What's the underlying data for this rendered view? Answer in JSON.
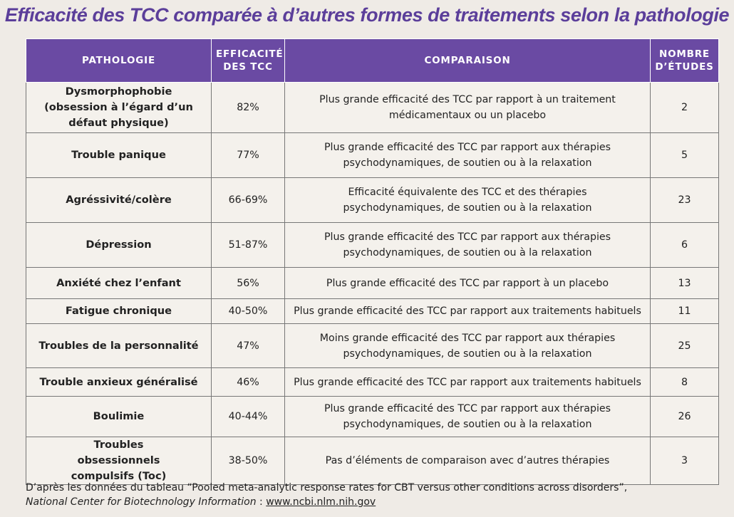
{
  "title": "Efficacité des TCC comparée à d’autres formes de traitements selon la pathologie",
  "headers": {
    "pathologie": "PATHOLOGIE",
    "efficacite_l1": "EFFICACITÉ",
    "efficacite_l2": "DES TCC",
    "comparaison": "COMPARAISON",
    "nombre_l1": "NOMBRE",
    "nombre_l2": "D’ÉTUDES"
  },
  "rows": [
    {
      "pathologie": "Dysmorphophobie (obsession à l’égard d’un défaut physique)",
      "efficacite": "82%",
      "comparaison": "Plus grande efficacité des TCC par rapport à un traitement médicamentaux ou un placebo",
      "etudes": "2"
    },
    {
      "pathologie": "Trouble panique",
      "efficacite": "77%",
      "comparaison": "Plus grande efficacité des TCC par rapport aux thérapies psychodynamiques, de soutien ou à la relaxation",
      "etudes": "5"
    },
    {
      "pathologie": "Agréssivité/colère",
      "efficacite": "66-69%",
      "comparaison": "Efficacité équivalente des TCC et des thérapies psychodynamiques, de soutien ou à la relaxation",
      "etudes": "23"
    },
    {
      "pathologie": "Dépression",
      "efficacite": "51-87%",
      "comparaison": "Plus grande efficacité des TCC par rapport aux thérapies psychodynamiques, de soutien ou à la relaxation",
      "etudes": "6"
    },
    {
      "pathologie": "Anxiété chez l’enfant",
      "efficacite": "56%",
      "comparaison": "Plus grande efficacité des TCC par rapport à un placebo",
      "etudes": "13"
    },
    {
      "pathologie": "Fatigue chronique",
      "efficacite": "40-50%",
      "comparaison": "Plus grande efficacité des TCC par rapport aux traitements habituels",
      "etudes": "11"
    },
    {
      "pathologie": "Troubles de la personnalité",
      "efficacite": "47%",
      "comparaison": "Moins grande efficacité des TCC par rapport aux thérapies psychodynamiques, de soutien ou à la relaxation",
      "etudes": "25"
    },
    {
      "pathologie": "Trouble anxieux généralisé",
      "efficacite": "46%",
      "comparaison": "Plus grande efficacité des TCC par rapport aux traitements habituels",
      "etudes": "8"
    },
    {
      "pathologie": "Boulimie",
      "efficacite": "40-44%",
      "comparaison": "Plus grande efficacité des TCC par rapport aux thérapies psychodynamiques, de soutien ou à la relaxation",
      "etudes": "26"
    },
    {
      "pathologie": "Troubles obsessionnels compulsifs (Toc)",
      "efficacite": "38-50%",
      "comparaison": "Pas d’éléments de comparaison avec d’autres thérapies",
      "etudes": "3"
    }
  ],
  "footer": {
    "line1": "D’après les données du tableau “Pooled meta-analytic response rates for CBT versus other conditions across disorders”,",
    "source": "National Center for Biotechnology Information",
    "separator": " : ",
    "link": "www.ncbi.nlm.nih.gov"
  },
  "colors": {
    "header_bg": "#6a4aa3",
    "title": "#5b3e9a"
  }
}
